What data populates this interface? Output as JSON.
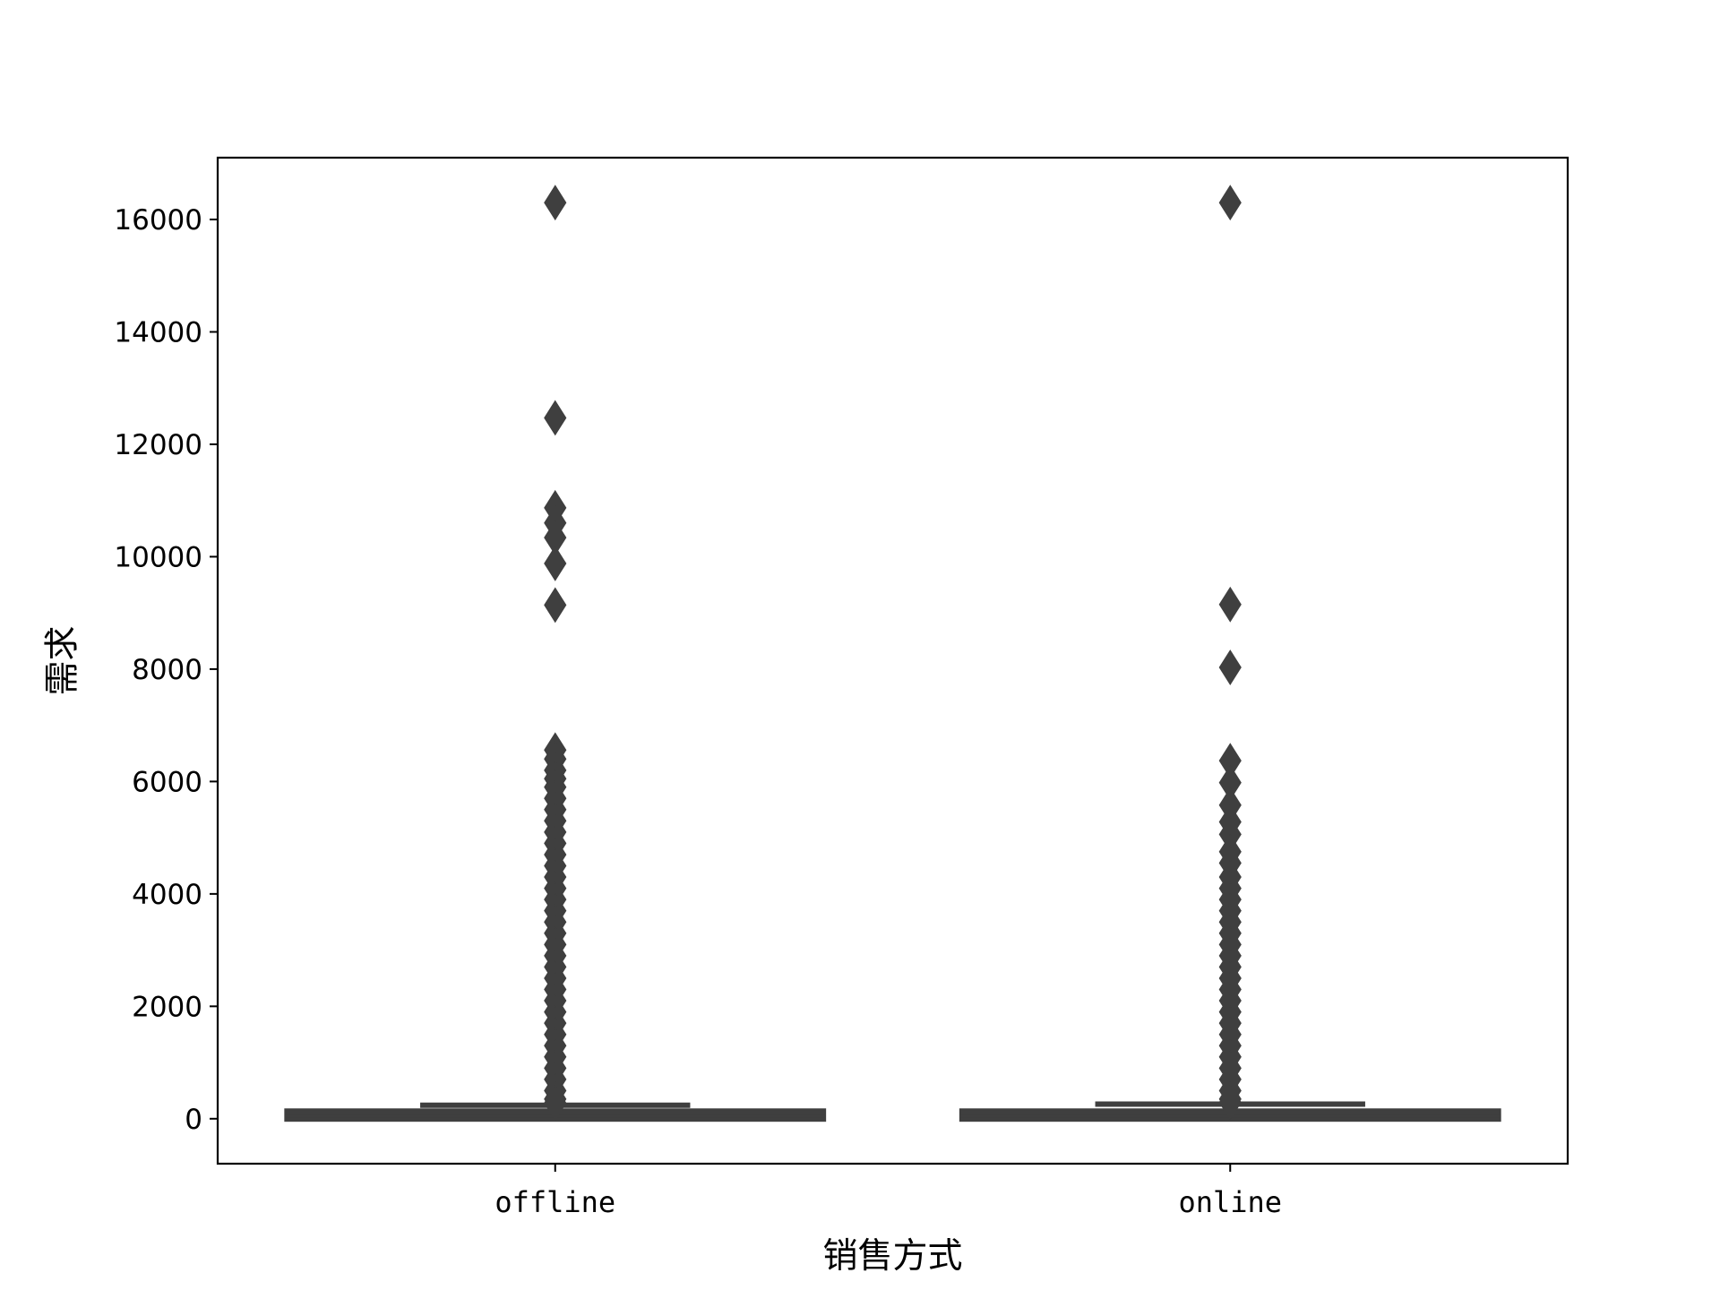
{
  "chart_data": {
    "type": "box",
    "xlabel": "销售方式",
    "ylabel": "需求",
    "categories": [
      "offline",
      "online"
    ],
    "yticks": [
      0,
      2000,
      4000,
      6000,
      8000,
      10000,
      12000,
      14000,
      16000
    ],
    "ylim": [
      -800,
      17100
    ],
    "grid": false,
    "colors": {
      "box": "#3f3f3f",
      "axes": "#000000",
      "background": "#ffffff"
    },
    "boxes": [
      {
        "category": "offline",
        "q1": 10,
        "median": 40,
        "q3": 120,
        "whisker_low": 0,
        "whisker_high": 240,
        "outliers": [
          16300,
          12470,
          10870,
          10600,
          10340,
          9880,
          9140,
          6560,
          6400,
          6200,
          6050,
          5900,
          5700,
          5500,
          5300,
          5100,
          4900,
          4700,
          4500,
          4300,
          4100,
          3900,
          3700,
          3500,
          3300,
          3100,
          2900,
          2700,
          2500,
          2300,
          2100,
          1900,
          1700,
          1500,
          1300,
          1100,
          900,
          700,
          500,
          350,
          280
        ]
      },
      {
        "category": "online",
        "q1": 10,
        "median": 40,
        "q3": 120,
        "whisker_low": 0,
        "whisker_high": 260,
        "outliers": [
          16300,
          9150,
          8030,
          6370,
          5980,
          5580,
          5280,
          5060,
          4750,
          4550,
          4300,
          4100,
          3900,
          3700,
          3500,
          3300,
          3100,
          2900,
          2700,
          2500,
          2300,
          2100,
          1900,
          1700,
          1500,
          1300,
          1100,
          900,
          700,
          500,
          350,
          290
        ]
      }
    ]
  }
}
